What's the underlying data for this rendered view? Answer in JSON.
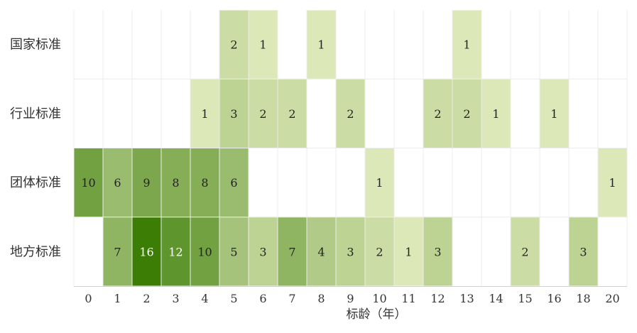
{
  "chart_data": {
    "type": "heatmap",
    "title": "",
    "xlabel": "标龄（年）",
    "ylabel": "",
    "x_categories": [
      "0",
      "1",
      "2",
      "3",
      "4",
      "5",
      "6",
      "7",
      "8",
      "9",
      "10",
      "11",
      "12",
      "13",
      "14",
      "15",
      "16",
      "18",
      "20"
    ],
    "y_categories": [
      "国家标准",
      "行业标准",
      "团体标准",
      "地方标准"
    ],
    "value_range": [
      1,
      16
    ],
    "color_scale": [
      "#dde8b8",
      "#3c7d06"
    ],
    "grid": true,
    "legend": "none",
    "cells": [
      {
        "row": "国家标准",
        "x": "5",
        "value": 2
      },
      {
        "row": "国家标准",
        "x": "6",
        "value": 1
      },
      {
        "row": "国家标准",
        "x": "8",
        "value": 1
      },
      {
        "row": "国家标准",
        "x": "13",
        "value": 1
      },
      {
        "row": "行业标准",
        "x": "4",
        "value": 1
      },
      {
        "row": "行业标准",
        "x": "5",
        "value": 3
      },
      {
        "row": "行业标准",
        "x": "6",
        "value": 2
      },
      {
        "row": "行业标准",
        "x": "7",
        "value": 2
      },
      {
        "row": "行业标准",
        "x": "9",
        "value": 2
      },
      {
        "row": "行业标准",
        "x": "12",
        "value": 2
      },
      {
        "row": "行业标准",
        "x": "13",
        "value": 2
      },
      {
        "row": "行业标准",
        "x": "14",
        "value": 1
      },
      {
        "row": "行业标准",
        "x": "16",
        "value": 1
      },
      {
        "row": "团体标准",
        "x": "0",
        "value": 10
      },
      {
        "row": "团体标准",
        "x": "1",
        "value": 6
      },
      {
        "row": "团体标准",
        "x": "2",
        "value": 9
      },
      {
        "row": "团体标准",
        "x": "3",
        "value": 8
      },
      {
        "row": "团体标准",
        "x": "4",
        "value": 8
      },
      {
        "row": "团体标准",
        "x": "5",
        "value": 6
      },
      {
        "row": "团体标准",
        "x": "10",
        "value": 1
      },
      {
        "row": "团体标准",
        "x": "20",
        "value": 1
      },
      {
        "row": "地方标准",
        "x": "1",
        "value": 7
      },
      {
        "row": "地方标准",
        "x": "2",
        "value": 16
      },
      {
        "row": "地方标准",
        "x": "3",
        "value": 12
      },
      {
        "row": "地方标准",
        "x": "4",
        "value": 10
      },
      {
        "row": "地方标准",
        "x": "5",
        "value": 5
      },
      {
        "row": "地方标准",
        "x": "6",
        "value": 3
      },
      {
        "row": "地方标准",
        "x": "7",
        "value": 7
      },
      {
        "row": "地方标准",
        "x": "8",
        "value": 4
      },
      {
        "row": "地方标准",
        "x": "9",
        "value": 3
      },
      {
        "row": "地方标准",
        "x": "10",
        "value": 2
      },
      {
        "row": "地方标准",
        "x": "11",
        "value": 1
      },
      {
        "row": "地方标准",
        "x": "12",
        "value": 3
      },
      {
        "row": "地方标准",
        "x": "15",
        "value": 2
      },
      {
        "row": "地方标准",
        "x": "18",
        "value": 3
      }
    ]
  }
}
